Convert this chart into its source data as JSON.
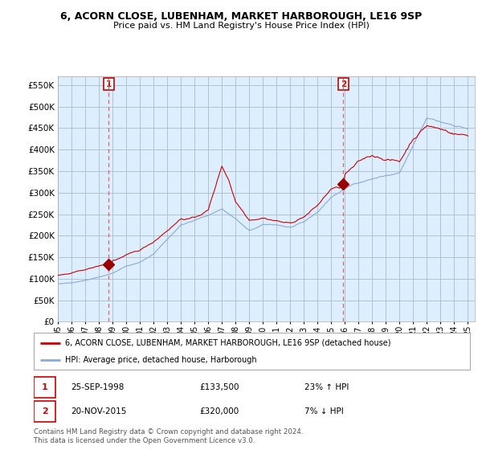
{
  "title": "6, ACORN CLOSE, LUBENHAM, MARKET HARBOROUGH, LE16 9SP",
  "subtitle": "Price paid vs. HM Land Registry's House Price Index (HPI)",
  "ylim": [
    0,
    570000
  ],
  "yticks": [
    0,
    50000,
    100000,
    150000,
    200000,
    250000,
    300000,
    350000,
    400000,
    450000,
    500000,
    550000
  ],
  "xlim_start": 1995.0,
  "xlim_end": 2025.5,
  "background_color": "#ffffff",
  "plot_bg_color": "#ddeeff",
  "grid_color": "#aabbcc",
  "legend_label_house": "6, ACORN CLOSE, LUBENHAM, MARKET HARBOROUGH, LE16 9SP (detached house)",
  "legend_label_hpi": "HPI: Average price, detached house, Harborough",
  "sale1_date": "25-SEP-1998",
  "sale1_price": "£133,500",
  "sale1_hpi": "23% ↑ HPI",
  "sale1_year": 1998.73,
  "sale1_value": 133500,
  "sale2_date": "20-NOV-2015",
  "sale2_price": "£320,000",
  "sale2_hpi": "7% ↓ HPI",
  "sale2_year": 2015.89,
  "sale2_value": 320000,
  "footer": "Contains HM Land Registry data © Crown copyright and database right 2024.\nThis data is licensed under the Open Government Licence v3.0.",
  "house_color": "#cc0000",
  "hpi_color": "#88aadd",
  "vline_color": "#dd6666",
  "marker_color": "#990000"
}
